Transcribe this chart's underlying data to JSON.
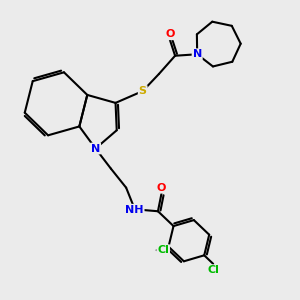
{
  "background_color": "#ebebeb",
  "bond_color": "#000000",
  "bond_width": 1.5,
  "atom_colors": {
    "N": "#0000ee",
    "O": "#ff0000",
    "S": "#ccaa00",
    "Cl": "#00bb00",
    "H": "#888888",
    "C": "#000000"
  },
  "font_size": 8,
  "figsize": [
    3.0,
    3.0
  ],
  "dpi": 100
}
